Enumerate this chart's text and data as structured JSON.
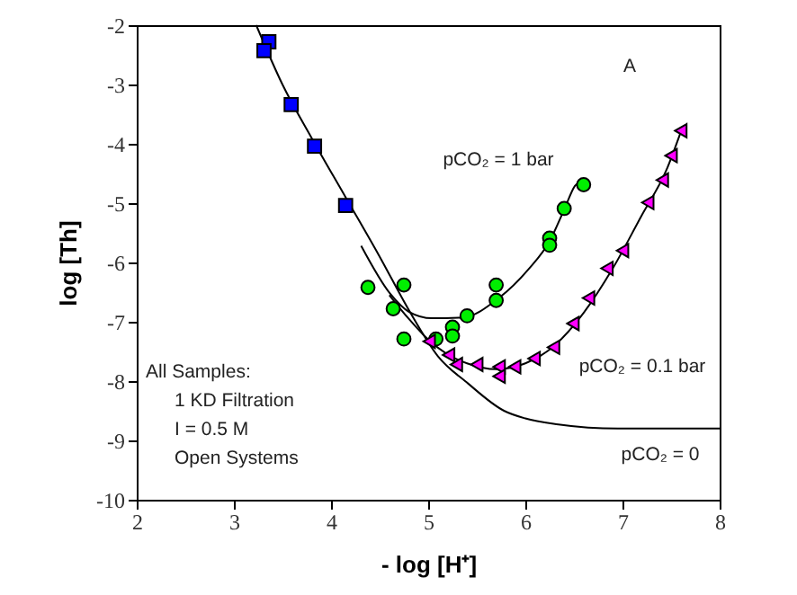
{
  "chart_data": {
    "type": "scatter",
    "xlabel": "- log [H⁺]",
    "ylabel": "log [Th]",
    "xlim": [
      2,
      8
    ],
    "ylim": [
      -10,
      -2
    ],
    "xticks": [
      2,
      3,
      4,
      5,
      6,
      7,
      8
    ],
    "yticks": [
      -2,
      -3,
      -4,
      -5,
      -6,
      -7,
      -8,
      -9,
      -10
    ],
    "series": [
      {
        "type": "scatter",
        "marker": "square",
        "color": "#0000ff",
        "x": [
          3.36,
          3.31,
          3.59,
          3.83,
          4.15
        ],
        "values": [
          -2.28,
          -2.43,
          -3.34,
          -4.04,
          -5.04
        ]
      },
      {
        "type": "scatter",
        "marker": "circle",
        "color": "#00ee00",
        "x": [
          4.38,
          4.75,
          4.64,
          4.75,
          5.08,
          5.25,
          5.25,
          5.4,
          5.7,
          5.7,
          6.25,
          6.25,
          6.4,
          6.6
        ],
        "values": [
          -6.42,
          -6.38,
          -6.78,
          -7.29,
          -7.29,
          -7.09,
          -7.24,
          -6.9,
          -6.38,
          -6.64,
          -5.59,
          -5.71,
          -5.09,
          -4.69
        ]
      },
      {
        "type": "scatter",
        "marker": "triangle",
        "color": "#ff00ff",
        "x": [
          5.01,
          5.21,
          5.29,
          5.5,
          5.73,
          5.73,
          5.89,
          6.09,
          6.29,
          6.49,
          6.65,
          6.84,
          7.0,
          7.26,
          7.41,
          7.5,
          7.6
        ],
        "values": [
          -7.33,
          -7.56,
          -7.72,
          -7.72,
          -7.76,
          -7.92,
          -7.76,
          -7.62,
          -7.43,
          -7.03,
          -6.6,
          -6.1,
          -5.8,
          -4.99,
          -4.61,
          -4.2,
          -3.78
        ]
      },
      {
        "type": "line",
        "color": "#000000",
        "x": [
          3.23,
          3.5,
          3.8,
          4.15,
          4.5,
          4.8,
          5.1,
          5.41,
          5.78,
          6.0,
          6.34,
          6.95,
          8
        ],
        "values": [
          -2,
          -3.0,
          -3.9,
          -4.9,
          -5.9,
          -6.8,
          -7.58,
          -8.04,
          -8.5,
          -8.63,
          -8.73,
          -8.8,
          -8.8
        ]
      },
      {
        "type": "line",
        "color": "#000000",
        "x": [
          4.31,
          4.61,
          4.8,
          5.04,
          5.35,
          5.72,
          6.03,
          6.25,
          6.4,
          6.51,
          6.59
        ],
        "values": [
          -5.72,
          -6.53,
          -6.83,
          -6.94,
          -6.93,
          -6.61,
          -6.12,
          -5.64,
          -5.11,
          -4.71,
          -4.61
        ]
      },
      {
        "type": "line",
        "color": "#000000",
        "x": [
          4.6,
          4.8,
          5.0,
          5.2,
          5.4,
          5.7,
          6.0,
          6.3,
          6.6,
          6.9,
          7.2,
          7.45,
          7.6
        ],
        "values": [
          -6.55,
          -6.95,
          -7.3,
          -7.55,
          -7.7,
          -7.8,
          -7.7,
          -7.4,
          -6.85,
          -6.1,
          -5.2,
          -4.45,
          -3.8
        ]
      }
    ],
    "annotations": [
      "A",
      "pCO₂ = 1 bar",
      "pCO₂ = 0.1 bar",
      "pCO₂ = 0",
      "All Samples:",
      "1 KD Filtration",
      "I = 0.5 M",
      "Open Systems"
    ]
  }
}
